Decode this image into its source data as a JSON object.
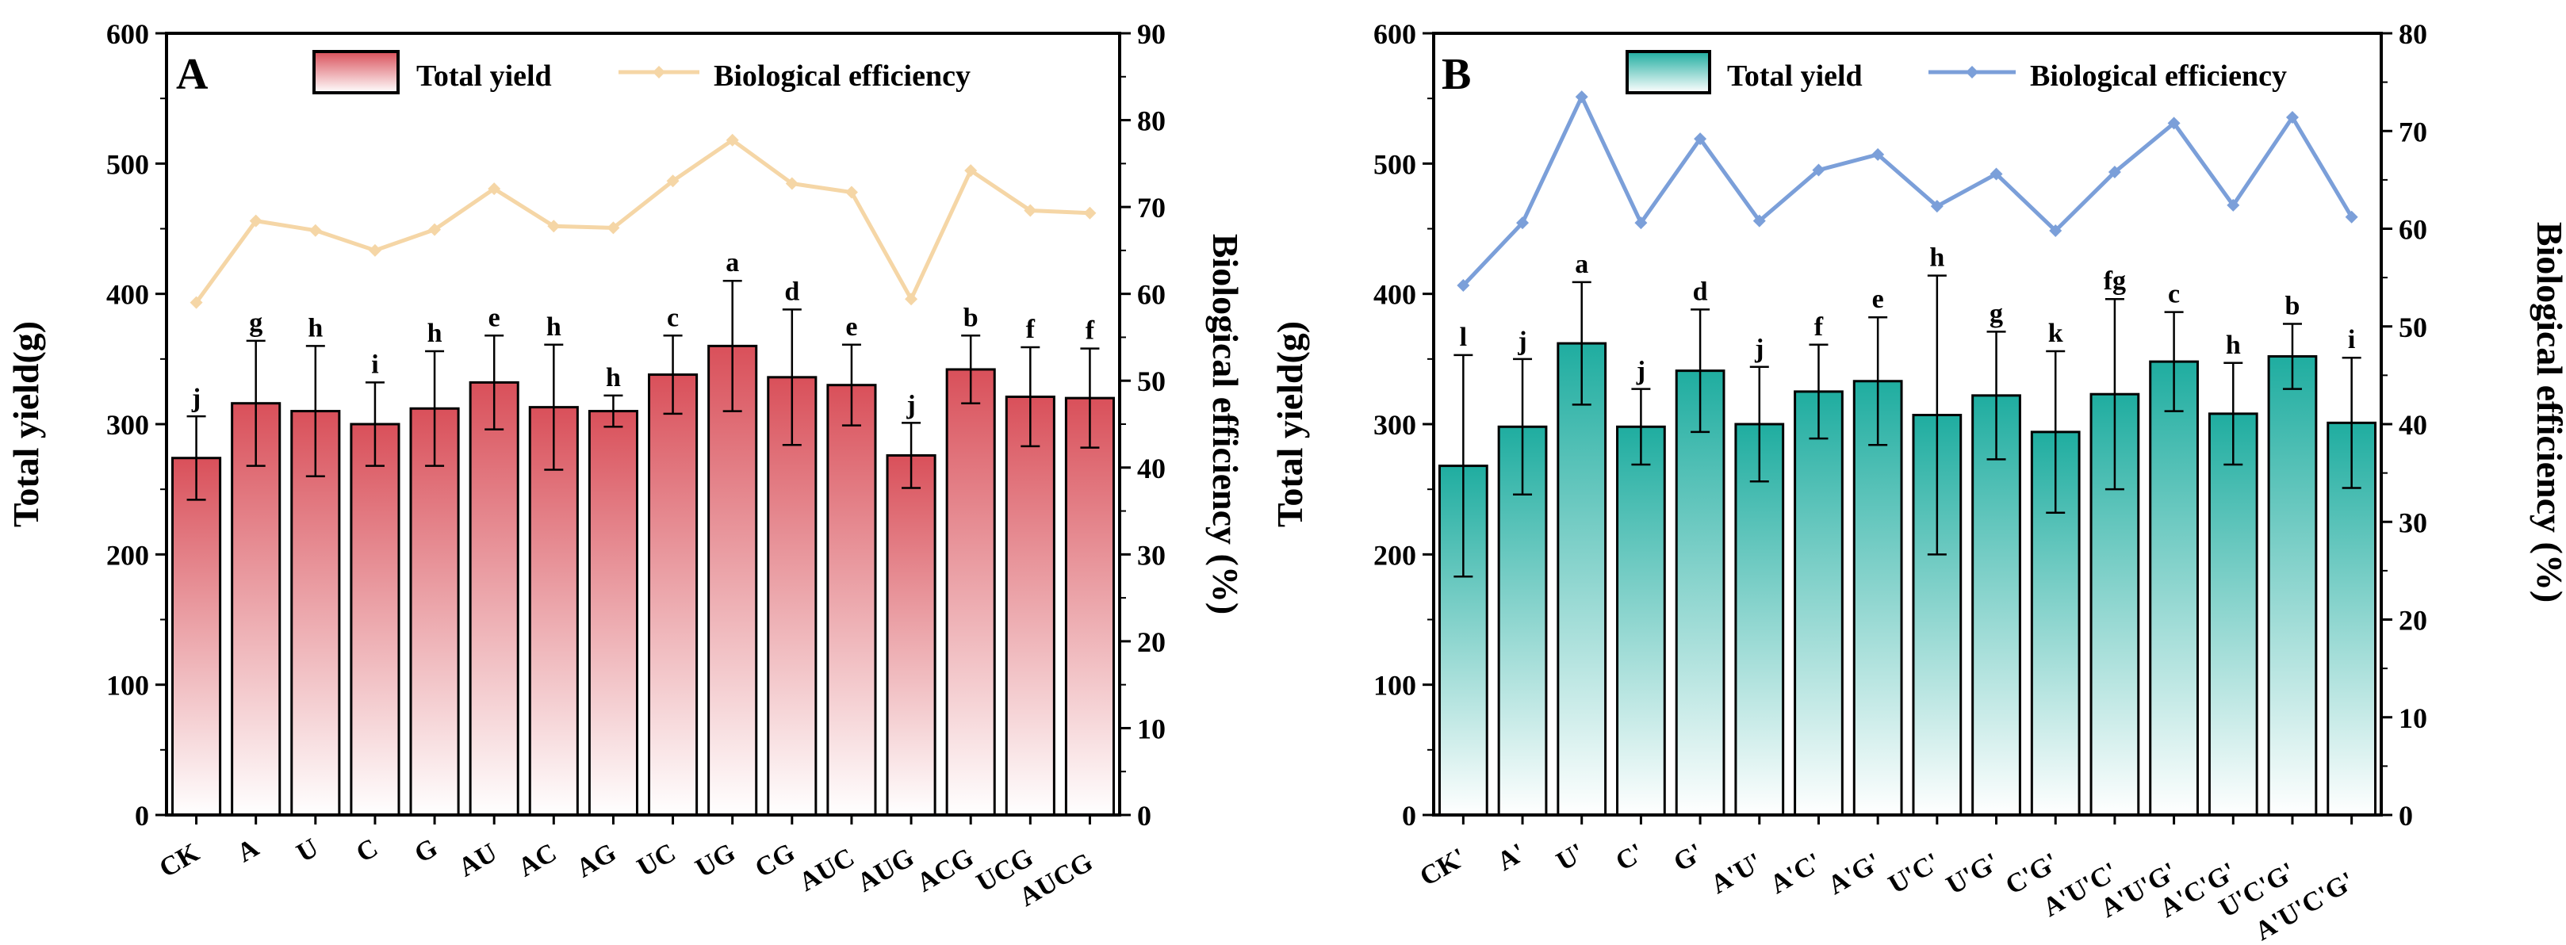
{
  "chart_data": [
    {
      "type": "bar",
      "panel_label": "A",
      "title": "",
      "xlabel": "",
      "ylabel": "Total yield(g)",
      "y2label": "Biological efficiency (%)",
      "ylim": [
        0,
        600
      ],
      "y2lim": [
        0,
        90
      ],
      "yticks": [
        0,
        100,
        200,
        300,
        400,
        500,
        600
      ],
      "y2ticks": [
        0,
        10,
        20,
        30,
        40,
        50,
        60,
        70,
        80,
        90
      ],
      "legend_position": "top",
      "legend": [
        "Total yield",
        "Biological efficiency"
      ],
      "colors": {
        "bar": "#d9505a",
        "line": "#f5d6a6"
      },
      "categories": [
        "CK",
        "A",
        "U",
        "C",
        "G",
        "AU",
        "AC",
        "AG",
        "UC",
        "UG",
        "CG",
        "AUC",
        "AUG",
        "ACG",
        "UCG",
        "AUCG"
      ],
      "series": [
        {
          "name": "Total yield",
          "type": "bar",
          "axis": "left",
          "values": [
            274,
            316,
            310,
            300,
            312,
            332,
            313,
            310,
            338,
            360,
            336,
            330,
            276,
            342,
            321,
            320
          ],
          "error": [
            32,
            48,
            50,
            32,
            44,
            36,
            48,
            12,
            30,
            50,
            52,
            31,
            25,
            26,
            38,
            38
          ],
          "letters": [
            "j",
            "g",
            "h",
            "i",
            "h",
            "e",
            "h",
            "h",
            "c",
            "a",
            "d",
            "e",
            "j",
            "b",
            "f",
            "f"
          ]
        },
        {
          "name": "Biological efficiency",
          "type": "line",
          "axis": "right",
          "values": [
            59,
            68.4,
            67.3,
            65,
            67.4,
            72.1,
            67.8,
            67.6,
            73,
            77.7,
            72.7,
            71.7,
            59.4,
            74.2,
            69.6,
            69.3
          ]
        }
      ]
    },
    {
      "type": "bar",
      "panel_label": "B",
      "title": "",
      "xlabel": "",
      "ylabel": "Total yield(g)",
      "y2label": "Biological efficiency (%)",
      "ylim": [
        0,
        600
      ],
      "y2lim": [
        0,
        80
      ],
      "yticks": [
        0,
        100,
        200,
        300,
        400,
        500,
        600
      ],
      "y2ticks": [
        0,
        10,
        20,
        30,
        40,
        50,
        60,
        70,
        80
      ],
      "legend_position": "top",
      "legend": [
        "Total yield",
        "Biological efficiency"
      ],
      "colors": {
        "bar": "#1fada0",
        "line": "#7b9fd9"
      },
      "categories": [
        "CK'",
        "A'",
        "U'",
        "C'",
        "G'",
        "A'U'",
        "A'C'",
        "A'G'",
        "U'C'",
        "U'G'",
        "C'G'",
        "A'U'C'",
        "A'U'G'",
        "A'C'G'",
        "U'C'G'",
        "A'U'C'G'"
      ],
      "series": [
        {
          "name": "Total yield",
          "type": "bar",
          "axis": "left",
          "values": [
            268,
            298,
            362,
            298,
            341,
            300,
            325,
            333,
            307,
            322,
            294,
            323,
            348,
            308,
            352,
            301
          ],
          "error": [
            85,
            52,
            47,
            29,
            47,
            44,
            36,
            49,
            107,
            49,
            62,
            73,
            38,
            39,
            25,
            50
          ],
          "letters": [
            "l",
            "j",
            "a",
            "j",
            "d",
            "j",
            "f",
            "e",
            "h",
            "g",
            "k",
            "fg",
            "c",
            "h",
            "b",
            "i"
          ]
        },
        {
          "name": "Biological efficiency",
          "type": "line",
          "axis": "right",
          "values": [
            54.2,
            60.6,
            73.5,
            60.6,
            69.2,
            60.8,
            66,
            67.6,
            62.3,
            65.6,
            59.8,
            65.8,
            70.8,
            62.4,
            71.4,
            61.2
          ]
        }
      ]
    }
  ]
}
